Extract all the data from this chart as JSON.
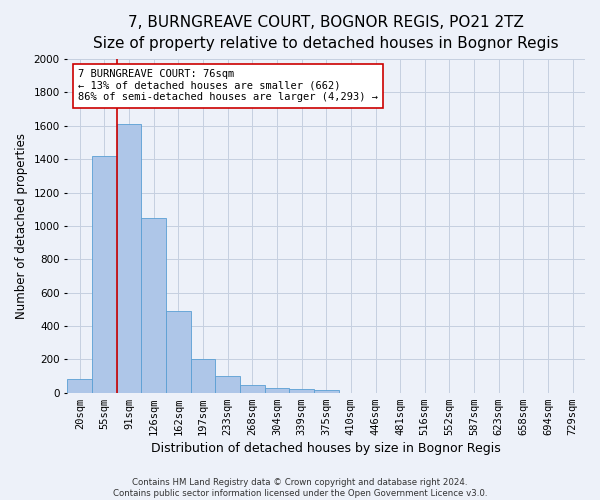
{
  "title_line1": "7, BURNGREAVE COURT, BOGNOR REGIS, PO21 2TZ",
  "title_line2": "Size of property relative to detached houses in Bognor Regis",
  "xlabel": "Distribution of detached houses by size in Bognor Regis",
  "ylabel": "Number of detached properties",
  "footnote": "Contains HM Land Registry data © Crown copyright and database right 2024.\nContains public sector information licensed under the Open Government Licence v3.0.",
  "bin_labels": [
    "20sqm",
    "55sqm",
    "91sqm",
    "126sqm",
    "162sqm",
    "197sqm",
    "233sqm",
    "268sqm",
    "304sqm",
    "339sqm",
    "375sqm",
    "410sqm",
    "446sqm",
    "481sqm",
    "516sqm",
    "552sqm",
    "587sqm",
    "623sqm",
    "658sqm",
    "694sqm",
    "729sqm"
  ],
  "bar_heights": [
    80,
    1420,
    1610,
    1050,
    490,
    205,
    100,
    48,
    30,
    22,
    15,
    0,
    0,
    0,
    0,
    0,
    0,
    0,
    0,
    0,
    0
  ],
  "bar_color": "#aec6e8",
  "bar_edge_color": "#5a9fd4",
  "vline_color": "#cc0000",
  "annotation_text": "7 BURNGREAVE COURT: 76sqm\n← 13% of detached houses are smaller (662)\n86% of semi-detached houses are larger (4,293) →",
  "annotation_box_color": "#ffffff",
  "annotation_box_edge": "#cc0000",
  "ylim": [
    0,
    2000
  ],
  "yticks": [
    0,
    200,
    400,
    600,
    800,
    1000,
    1200,
    1400,
    1600,
    1800,
    2000
  ],
  "background_color": "#edf1f9",
  "plot_bg_color": "#edf1f9",
  "grid_color": "#c5cfe0",
  "title_fontsize": 11,
  "subtitle_fontsize": 9,
  "axis_label_fontsize": 8.5,
  "tick_fontsize": 7.5,
  "annotation_fontsize": 7.5
}
